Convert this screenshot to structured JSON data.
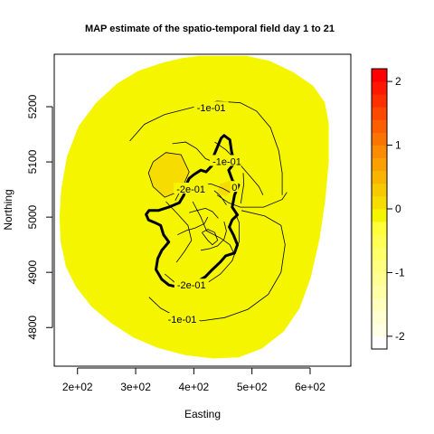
{
  "chart_data": {
    "type": "heatmap",
    "title": "MAP estimate of the spatio-temporal field day 1 to 21",
    "xlabel": "Easting",
    "ylabel": "Northing",
    "xlim": [
      160,
      670
    ],
    "ylim": [
      4730,
      5295
    ],
    "x_ticks": [
      {
        "value": 200,
        "label": "2e+02"
      },
      {
        "value": 300,
        "label": "3e+02"
      },
      {
        "value": 400,
        "label": "4e+02"
      },
      {
        "value": 500,
        "label": "5e+02"
      },
      {
        "value": 600,
        "label": "6e+02"
      }
    ],
    "y_ticks": [
      {
        "value": 4800,
        "label": "4800"
      },
      {
        "value": 4900,
        "label": "4900"
      },
      {
        "value": 5000,
        "label": "5000"
      },
      {
        "value": 5100,
        "label": "5100"
      },
      {
        "value": 5200,
        "label": "5200"
      }
    ],
    "field_color": "#f5f500",
    "field_region": [
      [
        410,
        5292
      ],
      [
        490,
        5292
      ],
      [
        530,
        5283
      ],
      [
        570,
        5263
      ],
      [
        605,
        5238
      ],
      [
        625,
        5208
      ],
      [
        632,
        5170
      ],
      [
        632,
        5100
      ],
      [
        626,
        5030
      ],
      [
        616,
        4960
      ],
      [
        601,
        4890
      ],
      [
        582,
        4835
      ],
      [
        555,
        4793
      ],
      [
        517,
        4762
      ],
      [
        477,
        4746
      ],
      [
        433,
        4744
      ],
      [
        385,
        4750
      ],
      [
        338,
        4763
      ],
      [
        296,
        4782
      ],
      [
        258,
        4808
      ],
      [
        224,
        4838
      ],
      [
        198,
        4873
      ],
      [
        180,
        4910
      ],
      [
        171,
        4955
      ],
      [
        169,
        5000
      ],
      [
        172,
        5050
      ],
      [
        182,
        5110
      ],
      [
        202,
        5165
      ],
      [
        232,
        5207
      ],
      [
        268,
        5242
      ],
      [
        305,
        5265
      ],
      [
        347,
        5280
      ],
      [
        380,
        5288
      ]
    ],
    "hotspot_regions": [
      {
        "color": "#f7dc00",
        "polygon": [
          [
            330,
            5100
          ],
          [
            352,
            5117
          ],
          [
            378,
            5113
          ],
          [
            392,
            5082
          ],
          [
            378,
            5048
          ],
          [
            350,
            5036
          ],
          [
            330,
            5055
          ],
          [
            322,
            5080
          ]
        ]
      },
      {
        "color": "#f7dc00",
        "polygon": [
          [
            445,
            5060
          ],
          [
            462,
            5066
          ],
          [
            468,
            5048
          ],
          [
            455,
            5038
          ],
          [
            440,
            5044
          ]
        ]
      }
    ],
    "region_boundary": [
      [
        452,
        5148
      ],
      [
        462,
        5140
      ],
      [
        465,
        5118
      ],
      [
        470,
        5098
      ],
      [
        460,
        5085
      ],
      [
        467,
        5065
      ],
      [
        477,
        5058
      ],
      [
        470,
        5040
      ],
      [
        466,
        5018
      ],
      [
        475,
        5004
      ],
      [
        466,
        4995
      ],
      [
        461,
        4982
      ],
      [
        468,
        4968
      ],
      [
        475,
        4950
      ],
      [
        470,
        4935
      ],
      [
        455,
        4930
      ],
      [
        445,
        4918
      ],
      [
        432,
        4905
      ],
      [
        420,
        4892
      ],
      [
        404,
        4882
      ],
      [
        390,
        4877
      ],
      [
        374,
        4873
      ],
      [
        357,
        4877
      ],
      [
        345,
        4887
      ],
      [
        335,
        4905
      ],
      [
        338,
        4925
      ],
      [
        345,
        4940
      ],
      [
        357,
        4955
      ],
      [
        348,
        4968
      ],
      [
        343,
        4985
      ],
      [
        333,
        4990
      ],
      [
        322,
        4995
      ],
      [
        318,
        5005
      ],
      [
        323,
        5012
      ],
      [
        339,
        5012
      ],
      [
        357,
        5018
      ],
      [
        375,
        5026
      ],
      [
        383,
        5040
      ],
      [
        386,
        5056
      ],
      [
        392,
        5070
      ],
      [
        400,
        5077
      ],
      [
        412,
        5085
      ],
      [
        421,
        5082
      ],
      [
        431,
        5093
      ],
      [
        435,
        5113
      ],
      [
        441,
        5128
      ],
      [
        447,
        5143
      ]
    ],
    "contours": [
      {
        "label": "-1e-01",
        "label_at": [
          430,
          5198
        ],
        "path": [
          [
            290,
            5138
          ],
          [
            315,
            5168
          ],
          [
            350,
            5186
          ],
          [
            395,
            5198
          ],
          [
            440,
            5210
          ],
          [
            480,
            5207
          ],
          [
            508,
            5192
          ],
          [
            532,
            5162
          ],
          [
            546,
            5120
          ],
          [
            552,
            5080
          ],
          [
            552,
            5040
          ]
        ]
      },
      {
        "label": "-1e-01",
        "label_at": [
          380,
          4815
        ],
        "path": [
          [
            323,
            4855
          ],
          [
            343,
            4835
          ],
          [
            373,
            4818
          ],
          [
            413,
            4812
          ],
          [
            453,
            4818
          ],
          [
            493,
            4833
          ],
          [
            528,
            4860
          ],
          [
            550,
            4900
          ],
          [
            557,
            4950
          ],
          [
            550,
            4985
          ],
          [
            522,
            5002
          ],
          [
            482,
            5012
          ]
        ]
      },
      {
        "label": "-2e-01",
        "label_at": [
          396,
          4877
        ],
        "path": [
          [
            350,
            4897
          ],
          [
            367,
            4882
          ],
          [
            392,
            4876
          ],
          [
            422,
            4880
          ],
          [
            446,
            4897
          ],
          [
            466,
            4921
          ],
          [
            478,
            4956
          ],
          [
            478,
            4990
          ],
          [
            470,
            5010
          ]
        ]
      },
      {
        "label": "-1e-01",
        "label_at": [
          457,
          5101
        ],
        "path": [
          [
            436,
            5136
          ],
          [
            455,
            5122
          ],
          [
            474,
            5102
          ],
          [
            486,
            5087
          ],
          [
            500,
            5070
          ],
          [
            512,
            5055
          ],
          [
            519,
            5040
          ]
        ]
      },
      {
        "label": "0",
        "label_at": [
          470,
          5054
        ],
        "path": [
          [
            485,
            5080
          ],
          [
            486,
            5060
          ],
          [
            483,
            5040
          ],
          [
            481,
            5025
          ]
        ]
      },
      {
        "label": "-2e-01",
        "label_at": [
          395,
          5051
        ],
        "path": [
          [
            368,
            5030
          ],
          [
            378,
            5050
          ],
          [
            405,
            5059
          ],
          [
            430,
            5060
          ],
          [
            450,
            5052
          ],
          [
            462,
            5045
          ]
        ]
      },
      {
        "label": "",
        "label_at": [
          0,
          0
        ],
        "path": [
          [
            440,
            5040
          ],
          [
            460,
            5026
          ],
          [
            480,
            5018
          ],
          [
            520,
            5018
          ],
          [
            552,
            5032
          ],
          [
            560,
            5045
          ]
        ]
      },
      {
        "label": "",
        "label_at": [
          0,
          0
        ],
        "path": [
          [
            363,
            5133
          ],
          [
            386,
            5136
          ],
          [
            405,
            5124
          ],
          [
            420,
            5106
          ],
          [
            438,
            5098
          ],
          [
            458,
            5106
          ],
          [
            472,
            5098
          ]
        ]
      },
      {
        "label": "",
        "label_at": [
          0,
          0
        ],
        "path": [
          [
            352,
            5028
          ],
          [
            372,
            5006
          ],
          [
            390,
            4985
          ],
          [
            396,
            4958
          ],
          [
            384,
            4938
          ],
          [
            370,
            4918
          ]
        ]
      },
      {
        "label": "",
        "label_at": [
          0,
          0
        ],
        "path": [
          [
            398,
            5028
          ],
          [
            412,
            5000
          ],
          [
            422,
            4975
          ],
          [
            446,
            4962
          ],
          [
            462,
            4950
          ],
          [
            470,
            4932
          ]
        ]
      },
      {
        "label": "",
        "label_at": [
          0,
          0
        ],
        "path": [
          [
            392,
            5008
          ],
          [
            405,
            5012
          ],
          [
            420,
            5016
          ],
          [
            432,
            5010
          ],
          [
            442,
            4998
          ]
        ]
      },
      {
        "label": "",
        "label_at": [
          0,
          0
        ],
        "path": [
          [
            414,
            4972
          ],
          [
            424,
            4958
          ],
          [
            432,
            4950
          ],
          [
            441,
            4958
          ],
          [
            436,
            4972
          ],
          [
            424,
            4978
          ],
          [
            414,
            4972
          ]
        ]
      },
      {
        "label": "",
        "label_at": [
          0,
          0
        ],
        "path": [
          [
            412,
            4940
          ],
          [
            428,
            4943
          ],
          [
            441,
            4948
          ],
          [
            452,
            4960
          ],
          [
            456,
            4975
          ],
          [
            452,
            4992
          ]
        ]
      },
      {
        "label": "",
        "label_at": [
          0,
          0
        ],
        "path": [
          [
            372,
            4968
          ],
          [
            388,
            4976
          ],
          [
            402,
            4980
          ],
          [
            418,
            4988
          ],
          [
            424,
            5000
          ]
        ]
      },
      {
        "label": "",
        "label_at": [
          0,
          0
        ],
        "path": [
          [
            435,
            5048
          ],
          [
            444,
            5040
          ],
          [
            450,
            5032
          ],
          [
            456,
            5022
          ]
        ]
      },
      {
        "label": "",
        "label_at": [
          0,
          0
        ],
        "path": [
          [
            330,
            5100
          ],
          [
            352,
            5117
          ],
          [
            378,
            5113
          ],
          [
            392,
            5082
          ],
          [
            378,
            5048
          ],
          [
            350,
            5036
          ],
          [
            330,
            5055
          ],
          [
            322,
            5080
          ],
          [
            330,
            5100
          ]
        ]
      }
    ],
    "colorbar": {
      "range": [
        -2.2,
        2.2
      ],
      "bins": [
        {
          "from": -2.2,
          "to": -2.0,
          "color": "#ffffff"
        },
        {
          "from": -2.0,
          "to": -1.8,
          "color": "#ffffe6"
        },
        {
          "from": -1.8,
          "to": -1.6,
          "color": "#ffffd2"
        },
        {
          "from": -1.6,
          "to": -1.4,
          "color": "#ffffbe"
        },
        {
          "from": -1.4,
          "to": -1.2,
          "color": "#ffffa8"
        },
        {
          "from": -1.2,
          "to": -1.0,
          "color": "#ffff94"
        },
        {
          "from": -1.0,
          "to": -0.8,
          "color": "#ffff80"
        },
        {
          "from": -0.8,
          "to": -0.6,
          "color": "#ffff6a"
        },
        {
          "from": -0.6,
          "to": -0.4,
          "color": "#ffff54"
        },
        {
          "from": -0.4,
          "to": -0.2,
          "color": "#ffff3a"
        },
        {
          "from": -0.2,
          "to": 0.0,
          "color": "#f5f500"
        },
        {
          "from": 0.0,
          "to": 0.2,
          "color": "#f7dc00"
        },
        {
          "from": 0.2,
          "to": 0.4,
          "color": "#f8c800"
        },
        {
          "from": 0.4,
          "to": 0.6,
          "color": "#f9b400"
        },
        {
          "from": 0.6,
          "to": 0.8,
          "color": "#faa000"
        },
        {
          "from": 0.8,
          "to": 1.0,
          "color": "#fb8c00"
        },
        {
          "from": 1.0,
          "to": 1.2,
          "color": "#fc7400"
        },
        {
          "from": 1.2,
          "to": 1.4,
          "color": "#fd5e00"
        },
        {
          "from": 1.4,
          "to": 1.6,
          "color": "#fd4800"
        },
        {
          "from": 1.6,
          "to": 1.8,
          "color": "#fe3000"
        },
        {
          "from": 1.8,
          "to": 2.0,
          "color": "#fe1800"
        },
        {
          "from": 2.0,
          "to": 2.2,
          "color": "#ff0000"
        }
      ],
      "ticks": [
        {
          "value": -2,
          "label": "-2"
        },
        {
          "value": -1,
          "label": "-1"
        },
        {
          "value": 0,
          "label": "0"
        },
        {
          "value": 1,
          "label": "1"
        },
        {
          "value": 2,
          "label": "2"
        }
      ]
    }
  }
}
